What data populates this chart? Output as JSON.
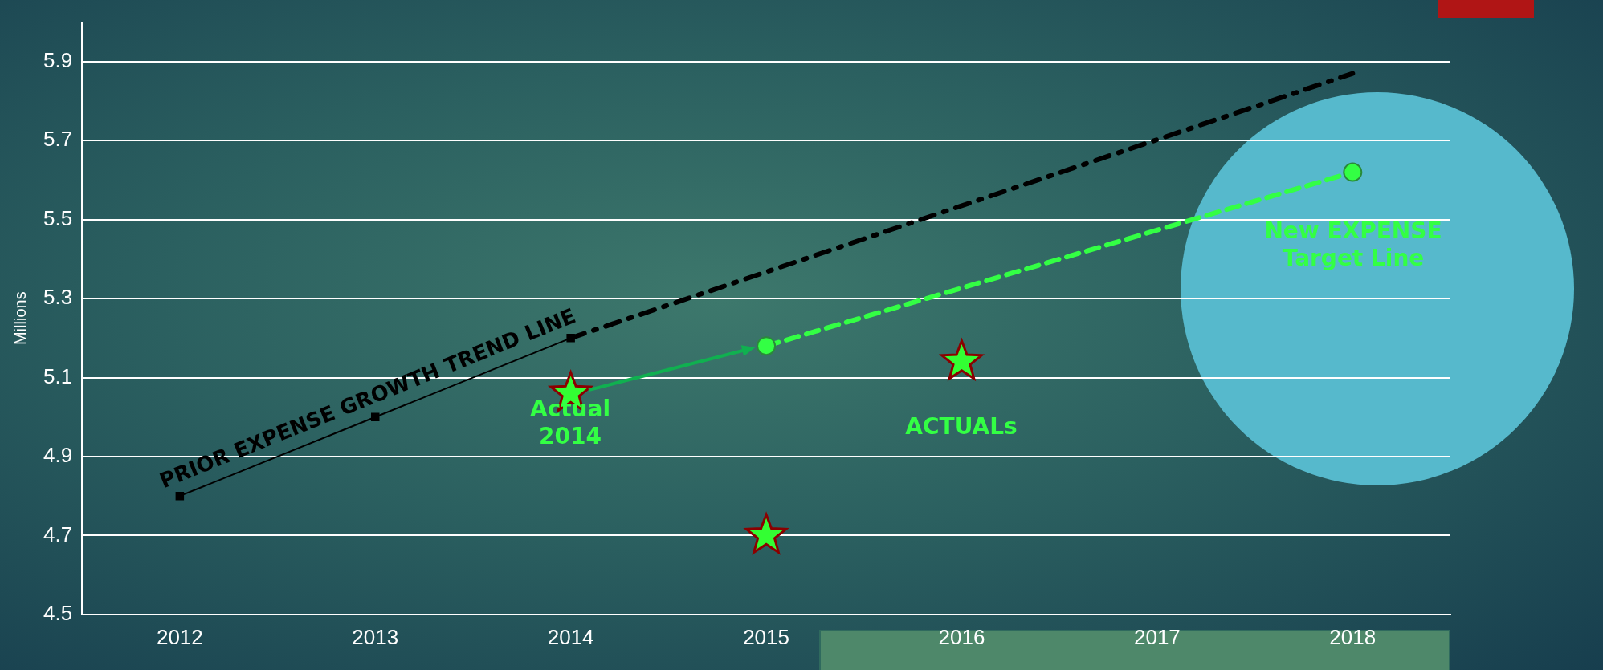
{
  "chart_data": {
    "type": "line",
    "categories": [
      "2012",
      "2013",
      "2014",
      "2015",
      "2016",
      "2017",
      "2018"
    ],
    "ylabel": "Millions",
    "ylim": [
      4.5,
      6.0
    ],
    "yticks": [
      4.5,
      4.7,
      4.9,
      5.1,
      5.3,
      5.5,
      5.7,
      5.9
    ],
    "grid": "y",
    "legend": false,
    "series": [
      {
        "color": "#000000",
        "values": [
          4.8,
          5.0,
          5.2,
          null,
          null,
          null,
          null
        ],
        "marker": "square",
        "line_style": "solid"
      },
      {
        "color": "#000000",
        "values": [
          null,
          null,
          5.2,
          null,
          null,
          null,
          5.87
        ],
        "marker": "none",
        "line_style": "dashdot"
      },
      {
        "color": "#33ff44",
        "values": [
          null,
          null,
          null,
          5.18,
          null,
          null,
          5.62
        ],
        "marker": "circle",
        "line_style": "dashed"
      },
      {
        "type": "scatter",
        "color": "#33ff33",
        "values": [
          null,
          null,
          5.06,
          4.7,
          5.14,
          null,
          null
        ],
        "marker": "star"
      }
    ],
    "annotations": [
      {
        "text": "PRIOR EXPENSE GROWTH TREND LINE",
        "x": "2013",
        "y": 5.0
      },
      "Actual\n2014",
      "ACTUALs",
      "New EXPENSE\nTarget Line"
    ]
  }
}
